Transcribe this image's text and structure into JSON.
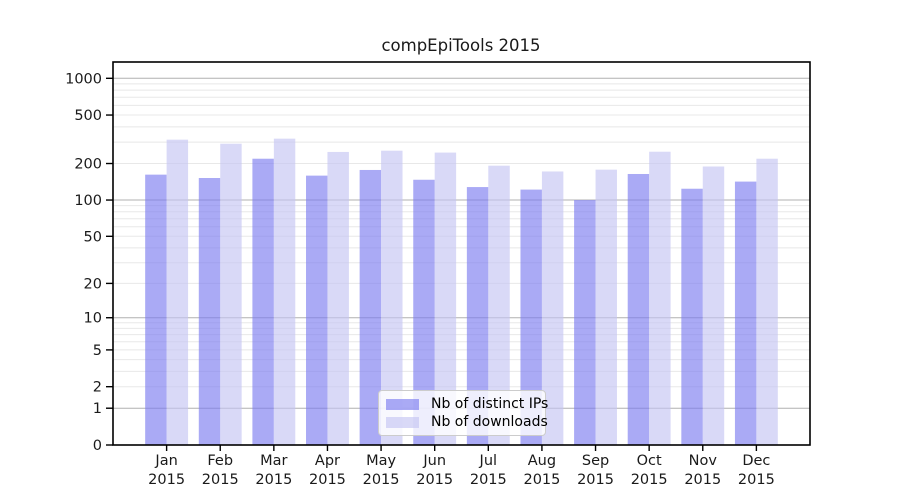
{
  "title": "compEpiTools 2015",
  "chart_data": {
    "type": "bar",
    "title": "compEpiTools 2015",
    "categories": [
      "Jan",
      "Feb",
      "Mar",
      "Apr",
      "May",
      "Jun",
      "Jul",
      "Aug",
      "Sep",
      "Oct",
      "Nov",
      "Dec"
    ],
    "year": "2015",
    "series": [
      {
        "name": "Nb of distinct IPs",
        "color": "#7d7df0",
        "fill_opacity": 0.65,
        "values": [
          162,
          152,
          219,
          159,
          177,
          147,
          128,
          122,
          100,
          164,
          124,
          142
        ]
      },
      {
        "name": "Nb of downloads",
        "color": "#c5c5f3",
        "fill_opacity": 0.65,
        "values": [
          314,
          291,
          320,
          249,
          255,
          246,
          192,
          172,
          178,
          250,
          189,
          219
        ]
      }
    ],
    "xlabel": "",
    "ylabel": "",
    "yscale": "log1p",
    "yticks": [
      0,
      1,
      2,
      5,
      10,
      20,
      50,
      100,
      200,
      500,
      1000
    ],
    "ylim": [
      0,
      1360
    ],
    "grid": {
      "on": true,
      "major_lines": [
        1,
        10,
        100,
        1000
      ],
      "minor_multipliers": [
        2,
        3,
        4,
        5,
        6,
        7,
        8,
        9
      ],
      "minor_decades": [
        1,
        10,
        100
      ]
    },
    "legend_position": "lower center"
  },
  "colors": {
    "grid_major": "#b0b0b0",
    "grid_minor": "#e8e8e8",
    "axis": "#000000",
    "text": "#1a1a1a"
  }
}
